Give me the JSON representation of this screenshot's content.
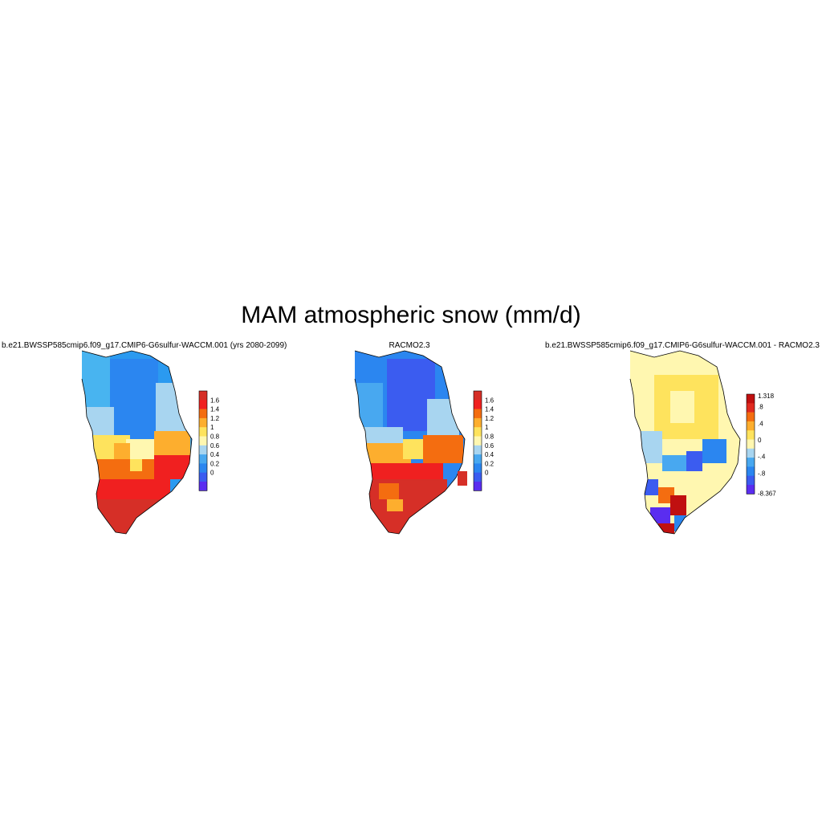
{
  "title": "MAM atmospheric snow (mm/d)",
  "panels": [
    {
      "id": "model",
      "title": "b.e21.BWSSP585cmip6.f09_g17.CMIP6-G6sulfur-WACCM.001 (yrs 2080-2099)",
      "colorbar": {
        "labels": [
          "1.6",
          "1.4",
          "1.2",
          "1",
          "0.8",
          "0.6",
          "0.4",
          "0.2",
          "0"
        ],
        "colors": [
          "#d62f27",
          "#f02020",
          "#f46d10",
          "#fdae2e",
          "#fee35d",
          "#fff7b0",
          "#a8d5f0",
          "#48a8f0",
          "#2b86f0",
          "#3b5cf0",
          "#5a2df0"
        ]
      }
    },
    {
      "id": "racmo",
      "title": "RACMO2.3",
      "colorbar": {
        "labels": [
          "1.6",
          "1.4",
          "1.2",
          "1",
          "0.8",
          "0.6",
          "0.4",
          "0.2",
          "0"
        ],
        "colors": [
          "#d62f27",
          "#f02020",
          "#f46d10",
          "#fdae2e",
          "#fee35d",
          "#fff7b0",
          "#a8d5f0",
          "#48a8f0",
          "#2b86f0",
          "#3b5cf0",
          "#5a2df0"
        ]
      }
    },
    {
      "id": "diff",
      "title": "b.e21.BWSSP585cmip6.f09_g17.CMIP6-G6sulfur-WACCM.001 - RACMO2.3",
      "colorbar": {
        "labels": [
          "1.318",
          ".8",
          ".4",
          "0",
          "-.4",
          "-.8",
          "-8.367"
        ],
        "colors": [
          "#c01010",
          "#e02a20",
          "#f46d10",
          "#fdae2e",
          "#fee35d",
          "#fff7b0",
          "#a8d5f0",
          "#48a8f0",
          "#2b86f0",
          "#3b5cf0",
          "#5a2df0"
        ]
      }
    }
  ]
}
